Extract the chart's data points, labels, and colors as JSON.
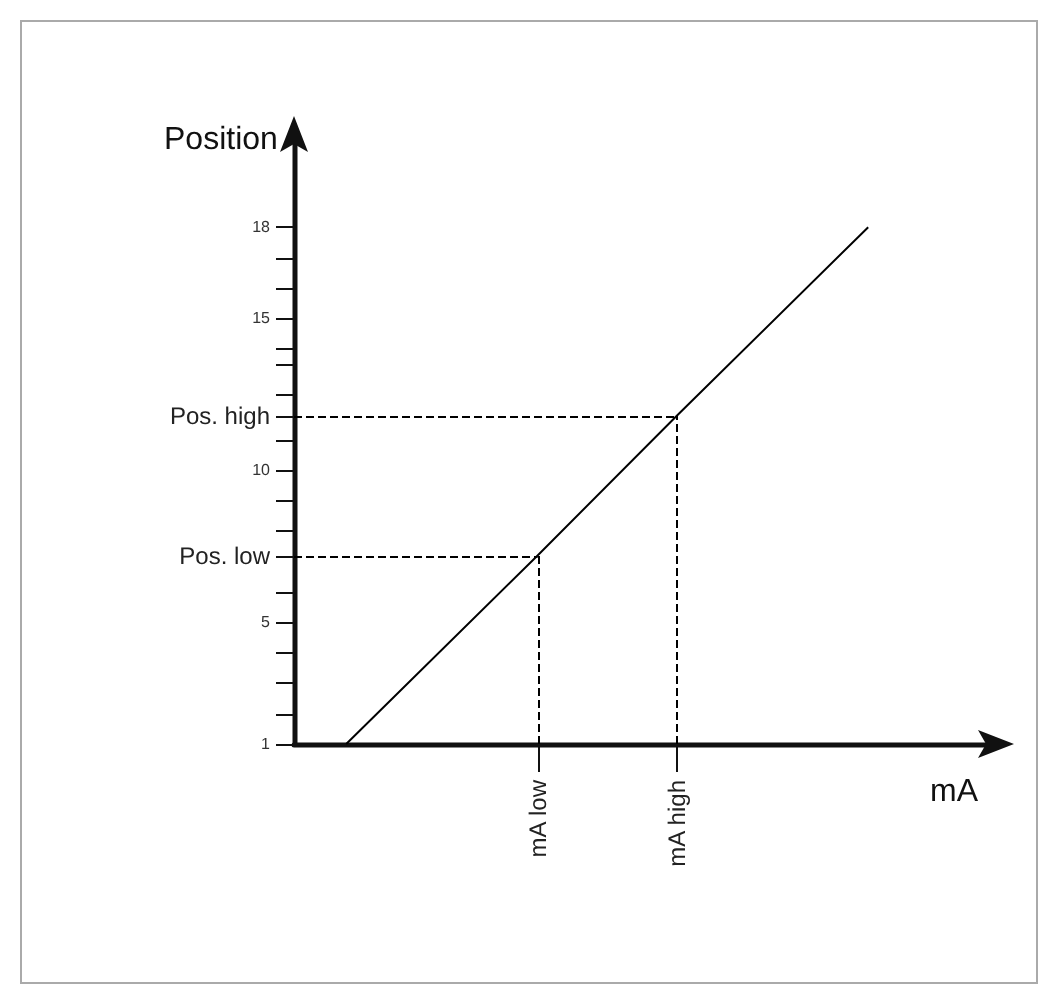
{
  "chart_data": {
    "type": "line",
    "xlabel": "mA",
    "ylabel": "Position",
    "ylim": [
      1,
      21
    ],
    "categories": [
      null,
      null,
      null,
      null,
      null,
      null,
      null,
      null,
      null,
      null,
      null,
      null,
      null,
      null,
      "mA low",
      null,
      null,
      null,
      null,
      null,
      null,
      null,
      "mA high",
      null,
      null,
      null,
      null,
      null,
      null,
      null,
      null,
      null,
      null,
      null,
      null,
      null,
      null,
      null,
      null,
      null,
      null
    ],
    "yticks": [
      1,
      {
        "value": 2,
        "label": null
      },
      {
        "value": 3,
        "label": null
      },
      {
        "value": 4,
        "label": null
      },
      5,
      {
        "value": 6,
        "label": null
      },
      {
        "value": 7.2,
        "label": null
      },
      {
        "value": 8,
        "label": null
      },
      {
        "value": 9,
        "label": null
      },
      10,
      {
        "value": 11,
        "label": null
      },
      {
        "value": 11.8,
        "label": null
      },
      {
        "value": 12.5,
        "label": null
      },
      {
        "value": 13.5,
        "label": null
      },
      {
        "value": 14,
        "label": null
      },
      15,
      {
        "value": 16,
        "label": null
      },
      {
        "value": 17,
        "label": null
      },
      18
    ],
    "grid": false,
    "marker": "none",
    "line_style": "solid",
    "ref_lines": [
      {
        "axis": "y",
        "value": 7.2,
        "label": "Pos. low",
        "line_style": "dashed",
        "color": "#000000"
      },
      {
        "axis": "y",
        "value": 11.8,
        "label": "Pos. high",
        "line_style": "dashed",
        "color": "#000000"
      },
      {
        "axis": "x",
        "value": "mA low",
        "label": null,
        "line_style": "dashed",
        "color": "#000000"
      },
      {
        "axis": "x",
        "value": "mA high",
        "label": null,
        "line_style": "dashed",
        "color": "#000000"
      }
    ],
    "series": [
      {
        "color": "#000000",
        "values": [
          null,
          null,
          null,
          1,
          null,
          null,
          null,
          null,
          null,
          null,
          null,
          null,
          null,
          null,
          7.2,
          null,
          null,
          null,
          null,
          null,
          null,
          null,
          11.8,
          null,
          null,
          null,
          null,
          null,
          null,
          null,
          null,
          null,
          null,
          18.0,
          null,
          null,
          null,
          null,
          null,
          null,
          null
        ]
      }
    ]
  }
}
